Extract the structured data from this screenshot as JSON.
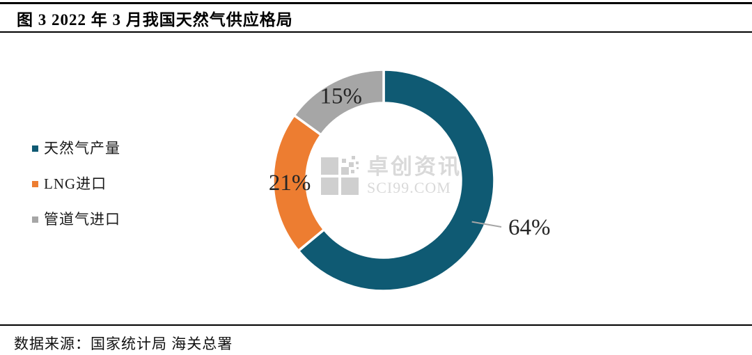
{
  "header": {
    "title": "图 3 2022 年 3 月我国天然气供应格局"
  },
  "footer": {
    "source": "数据来源：国家统计局 海关总署"
  },
  "watermark": {
    "name": "卓创资讯",
    "domain": "SCI99.COM",
    "color": "#D9D9D9"
  },
  "chart_data": {
    "type": "pie",
    "subtype": "donut",
    "title": "图 3 2022 年 3 月我国天然气供应格局",
    "categories": [
      "天然气产量",
      "LNG进口",
      "管道气进口"
    ],
    "values": [
      64,
      21,
      15
    ],
    "unit": "%",
    "series": [
      {
        "name": "天然气产量",
        "value": 64,
        "label": "64%",
        "color": "#0F5A73",
        "label_position": "outside"
      },
      {
        "name": "LNG进口",
        "value": 21,
        "label": "21%",
        "color": "#ED7D31",
        "label_position": "inside"
      },
      {
        "name": "管道气进口",
        "value": 15,
        "label": "15%",
        "color": "#A6A6A6",
        "label_position": "inside"
      }
    ],
    "start_angle": "12-oclock",
    "direction": "clockwise",
    "inner_radius_ratio": 0.7,
    "legend_position": "left",
    "separator_color": "#FFFFFF",
    "label_color": "#262626",
    "leader_line_color": "#A6A6A6",
    "grid": false
  }
}
